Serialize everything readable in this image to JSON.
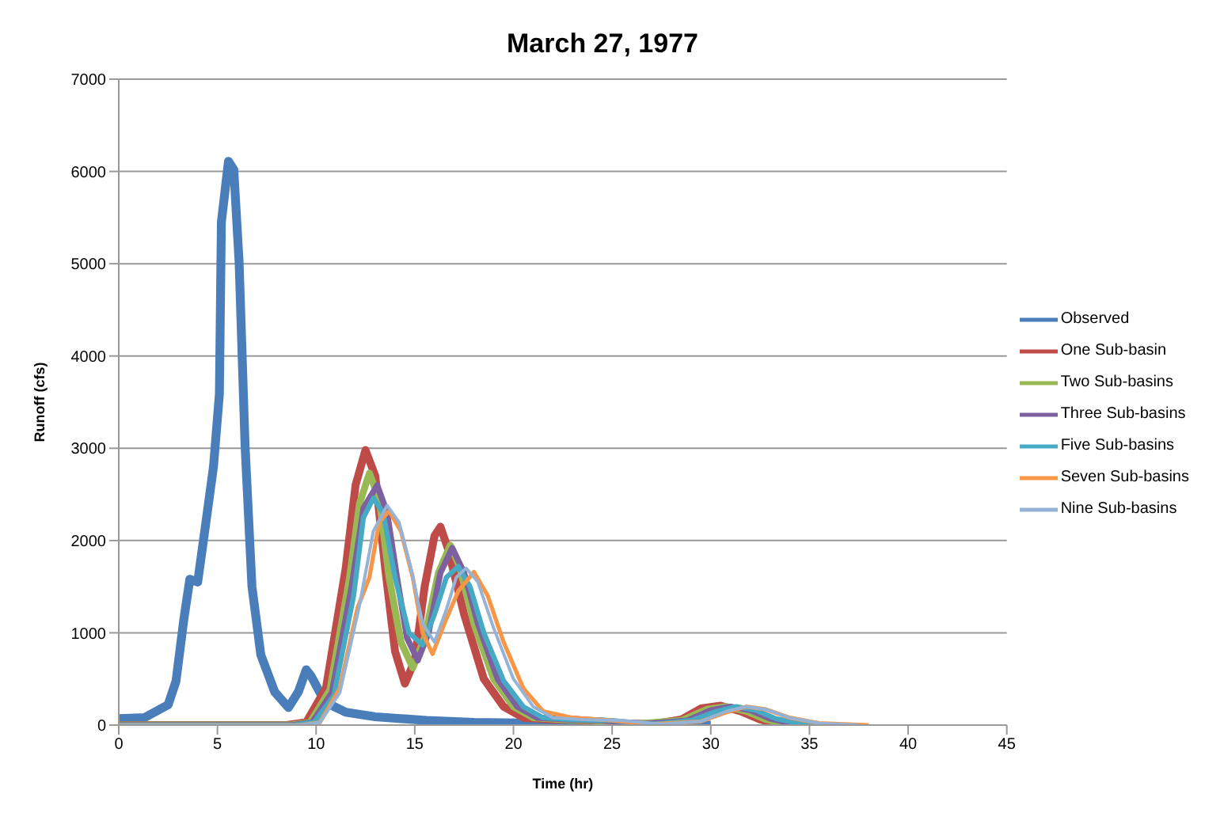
{
  "chart_data": {
    "type": "line",
    "title": "March 27, 1977",
    "xlabel": "Time (hr)",
    "ylabel": "Runoff (cfs)",
    "xlim": [
      0,
      45
    ],
    "xticks": [
      0,
      5,
      10,
      15,
      20,
      25,
      30,
      35,
      40,
      45
    ],
    "ylim": [
      0,
      7000
    ],
    "yticks": [
      0,
      1000,
      2000,
      3000,
      4000,
      5000,
      6000,
      7000
    ],
    "grid": "y",
    "legend": "right",
    "marker": "none",
    "line_style": "solid",
    "series": [
      {
        "name": "Observed",
        "color": "#4a7ebb",
        "x": [
          0,
          1.3,
          2.5,
          2.9,
          3.3,
          3.6,
          4.0,
          4.4,
          4.8,
          5.1,
          5.2,
          5.56,
          5.83,
          6.1,
          6.4,
          6.75,
          7.2,
          7.9,
          8.6,
          9.1,
          9.5,
          9.75,
          10.45,
          11.5,
          13,
          15.6,
          18,
          21,
          25,
          30
        ],
        "values": [
          70,
          80,
          220,
          475,
          1150,
          1580,
          1550,
          2170,
          2800,
          3590,
          5450,
          6110,
          6020,
          5010,
          3030,
          1500,
          760,
          360,
          190,
          360,
          600,
          530,
          250,
          140,
          90,
          50,
          30,
          20,
          10,
          0
        ]
      },
      {
        "name": "One Sub-basin",
        "color": "#be4b48",
        "x": [
          0,
          8.5,
          9.5,
          10.5,
          11.5,
          12,
          12.5,
          13,
          13.5,
          14,
          14.5,
          15,
          15.5,
          16,
          16.3,
          16.7,
          17.5,
          18.5,
          19.5,
          20.5,
          22,
          23,
          25,
          27,
          28.5,
          29.5,
          30.5,
          31.5,
          32.5,
          33.5,
          35
        ],
        "values": [
          0,
          0,
          30,
          400,
          1700,
          2600,
          2980,
          2700,
          1700,
          800,
          450,
          700,
          1500,
          2050,
          2150,
          1900,
          1200,
          500,
          200,
          80,
          60,
          60,
          20,
          10,
          60,
          180,
          210,
          150,
          60,
          10,
          0
        ]
      },
      {
        "name": "Two Sub-basins",
        "color": "#98b954",
        "x": [
          0,
          8.7,
          9.7,
          10.7,
          11.7,
          12.2,
          12.7,
          13.2,
          13.7,
          14.3,
          14.9,
          15.5,
          16.2,
          16.8,
          17.3,
          18,
          19,
          20,
          21,
          22.5,
          24,
          26,
          28.5,
          29.8,
          30.8,
          31.8,
          32.8,
          34,
          35.5
        ],
        "values": [
          0,
          0,
          30,
          380,
          1600,
          2400,
          2730,
          2450,
          1600,
          900,
          620,
          950,
          1650,
          1950,
          1700,
          1100,
          500,
          200,
          80,
          60,
          50,
          10,
          50,
          170,
          200,
          150,
          60,
          10,
          0
        ]
      },
      {
        "name": "Three Sub-basins",
        "color": "#7d60a0",
        "x": [
          0,
          8.8,
          9.8,
          10.8,
          11.8,
          12.4,
          13.1,
          13.6,
          14.1,
          14.6,
          15.15,
          15.7,
          16.3,
          16.9,
          17.5,
          18.2,
          19.2,
          20.2,
          21.2,
          22.8,
          24.5,
          26.5,
          28.8,
          30,
          31,
          32,
          33,
          34.3,
          36
        ],
        "values": [
          0,
          0,
          30,
          350,
          1500,
          2350,
          2600,
          2300,
          1600,
          950,
          700,
          1000,
          1650,
          1920,
          1650,
          1100,
          500,
          200,
          80,
          60,
          50,
          10,
          50,
          160,
          200,
          160,
          70,
          10,
          0
        ]
      },
      {
        "name": "Five Sub-basins",
        "color": "#46aac5",
        "x": [
          0,
          8.9,
          9.9,
          10.9,
          11.9,
          12.4,
          12.9,
          13.4,
          14,
          14.7,
          15.4,
          16,
          16.6,
          17.2,
          17.8,
          18.5,
          19.5,
          20.5,
          21.5,
          23,
          25,
          27,
          29,
          30.3,
          31.3,
          32.3,
          33.3,
          34.7,
          36.5
        ],
        "values": [
          0,
          0,
          30,
          320,
          1400,
          2250,
          2460,
          2300,
          1600,
          1000,
          870,
          1200,
          1600,
          1720,
          1500,
          1000,
          480,
          200,
          80,
          60,
          50,
          10,
          50,
          150,
          200,
          160,
          70,
          10,
          0
        ]
      },
      {
        "name": "Seven Sub-basins",
        "color": "#f79646",
        "x": [
          0,
          9.2,
          10.2,
          11.2,
          12.1,
          12.7,
          13.2,
          13.7,
          14.3,
          14.9,
          15.4,
          15.9,
          16.5,
          17.2,
          18,
          18.7,
          19.5,
          20.5,
          21.5,
          23,
          25,
          27,
          29.5,
          30.8,
          31.8,
          32.8,
          34,
          35.5,
          38
        ],
        "values": [
          0,
          0,
          30,
          400,
          1270,
          1600,
          2200,
          2320,
          2100,
          1600,
          1000,
          770,
          1100,
          1450,
          1660,
          1400,
          900,
          400,
          150,
          80,
          50,
          10,
          40,
          140,
          200,
          170,
          80,
          20,
          0
        ]
      },
      {
        "name": "Nine Sub-basins",
        "color": "#95b3d7",
        "x": [
          0,
          9.2,
          10.2,
          11.2,
          12.2,
          12.9,
          13.6,
          14.2,
          14.8,
          15.4,
          16,
          16.6,
          17.1,
          17.6,
          18.2,
          19,
          20,
          21,
          22,
          23.5,
          25.5,
          27.5,
          29.5,
          30.8,
          31.8,
          32.8,
          34,
          35.5,
          37.5
        ],
        "values": [
          0,
          0,
          30,
          350,
          1300,
          2100,
          2380,
          2200,
          1700,
          1100,
          900,
          1250,
          1600,
          1700,
          1550,
          1050,
          500,
          200,
          80,
          60,
          50,
          10,
          40,
          150,
          200,
          170,
          80,
          20,
          0
        ]
      }
    ]
  }
}
